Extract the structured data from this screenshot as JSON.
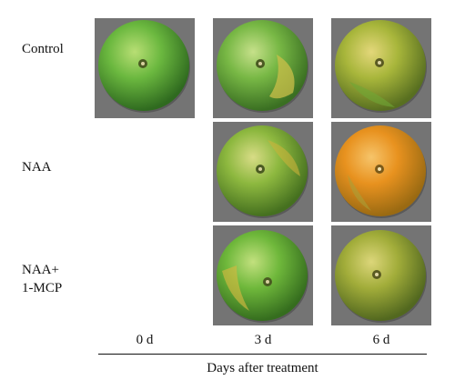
{
  "figure": {
    "rows": [
      {
        "label_lines": [
          "Control"
        ]
      },
      {
        "label_lines": [
          "NAA"
        ]
      },
      {
        "label_lines": [
          "NAA+",
          "1-MCP"
        ]
      }
    ],
    "columns": [
      "0 d",
      "3 d",
      "6 d"
    ],
    "axis_title": "Days after treatment",
    "panels": [
      {
        "row": 0,
        "col": 0,
        "description": "green tangerine fruit"
      },
      {
        "row": 0,
        "col": 1,
        "description": "green tangerine fruit with yellow patch"
      },
      {
        "row": 0,
        "col": 2,
        "description": "yellow-green tangerine fruit"
      },
      {
        "row": 1,
        "col": 1,
        "description": "green-yellow tangerine fruit"
      },
      {
        "row": 1,
        "col": 2,
        "description": "orange tangerine fruit"
      },
      {
        "row": 2,
        "col": 1,
        "description": "green tangerine fruit with yellow patch"
      },
      {
        "row": 2,
        "col": 2,
        "description": "yellow-green tangerine fruit"
      }
    ],
    "colors": {
      "panel_background": "#747474",
      "green": "#5aa63a",
      "yellow": "#c9b33a",
      "orange": "#e8921f"
    }
  }
}
